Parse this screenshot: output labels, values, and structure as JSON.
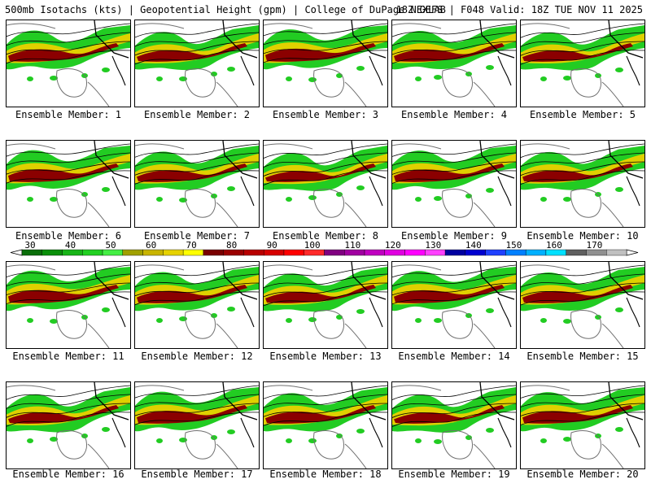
{
  "header": {
    "left_text": "500mb Isotachs (kts) | Geopotential Height (gpm) | College of DuPage NEXLAB",
    "right_text": "18Z GEFS | F048 Valid: 18Z TUE NOV 11 2025"
  },
  "member_label_prefix": "Ensemble Member: ",
  "members": [
    1,
    2,
    3,
    4,
    5,
    6,
    7,
    8,
    9,
    10,
    11,
    12,
    13,
    14,
    15,
    16,
    17,
    18,
    19,
    20
  ],
  "colorbar": {
    "tick_labels": [
      "30",
      "40",
      "50",
      "60",
      "70",
      "80",
      "90",
      "100",
      "110",
      "120",
      "130",
      "140",
      "150",
      "160",
      "170"
    ],
    "colors": [
      "#0a6e0a",
      "#0a8f0a",
      "#18b418",
      "#22d022",
      "#44ee44",
      "#a0a000",
      "#c8b400",
      "#e6d200",
      "#ffff00",
      "#7a0000",
      "#9a0000",
      "#b80000",
      "#d60000",
      "#ff0000",
      "#ff2a2a",
      "#800080",
      "#a000a0",
      "#c000c0",
      "#e000e0",
      "#ff00ff",
      "#ff40ff",
      "#0000a0",
      "#0000d0",
      "#2040ff",
      "#0080ff",
      "#00b0ff",
      "#00e0ff",
      "#606060",
      "#909090",
      "#c0c0c0"
    ]
  },
  "map_colors": {
    "speed_low": "#22cc22",
    "speed_mid": "#e0d000",
    "speed_high": "#8b0000",
    "coast": "#707070",
    "borders": "#000000",
    "contours": "#000000"
  }
}
